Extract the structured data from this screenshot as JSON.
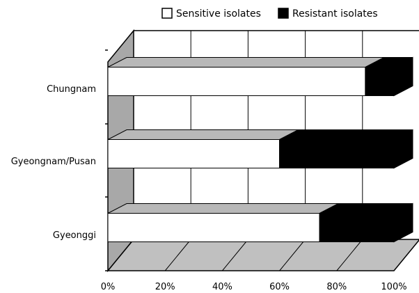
{
  "chart_data": {
    "type": "bar",
    "orientation": "horizontal",
    "stacked": "percent",
    "style": "3d",
    "title": "",
    "xlabel": "",
    "ylabel": "",
    "categories": [
      "Chungnam",
      "Gyeongnam/Pusan",
      "Gyeonggi"
    ],
    "series": [
      {
        "name": "Sensitive isolates",
        "values": [
          90,
          60,
          74
        ],
        "color": "#ffffff"
      },
      {
        "name": "Resistant isolates",
        "values": [
          10,
          40,
          26
        ],
        "color": "#000000"
      }
    ],
    "x_ticks": [
      "0%",
      "20%",
      "40%",
      "60%",
      "80%",
      "100%"
    ],
    "xlim": [
      0,
      100
    ],
    "grid": true,
    "legend_position": "top-right",
    "colors": {
      "top_face": "#b8b8b8",
      "side_wall": "#a8a8a8",
      "floor": "#c0c0c0",
      "bar_outline": "#000000"
    }
  }
}
